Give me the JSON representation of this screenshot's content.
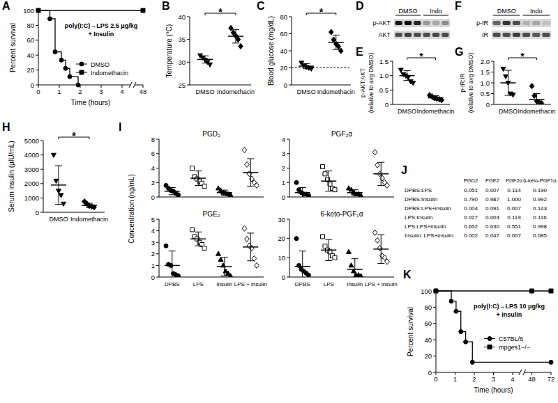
{
  "chart_data": [
    {
      "type": "survival",
      "panel": "A",
      "ylabel": "Percent survival",
      "xlabel": "Time (hours)",
      "xlim": [
        0,
        48
      ],
      "xticks": [
        0,
        1,
        2,
        3,
        4,
        48
      ],
      "ylim": [
        0,
        100
      ],
      "yticks": [
        0,
        20,
        40,
        60,
        80,
        100
      ],
      "annotation": [
        "poly(I:C)→LPS 2.5 μg/kg",
        "+ Insulin"
      ],
      "legend": "lower right",
      "series": [
        {
          "name": "DMSO",
          "color": "#000000",
          "marker": "circle",
          "x": [
            0,
            0.55,
            0.8,
            1.1,
            1.3,
            1.5,
            1.9
          ],
          "values": [
            100,
            88.9,
            44.4,
            33.3,
            22.2,
            11.1,
            0
          ]
        },
        {
          "name": "Indomethacin",
          "color": "#000000",
          "marker": "square",
          "x": [
            0,
            48
          ],
          "values": [
            100,
            100
          ]
        }
      ]
    },
    {
      "type": "dot",
      "panel": "B",
      "ylabel": "Temperature (°C)",
      "ylim": [
        25,
        40
      ],
      "yticks": [
        25,
        30,
        35,
        40
      ],
      "categories": [
        "DMSO",
        "Indomethacin"
      ],
      "significance": "*",
      "groups": [
        {
          "marker": "triangle-down",
          "color": "#000000",
          "values": [
            31.5,
            31,
            30.5,
            30,
            29.5
          ],
          "mean": 30.6,
          "sd": 0.8
        },
        {
          "marker": "diamond",
          "color": "#000000",
          "values": [
            37.5,
            36.5,
            35.8,
            35,
            33.5
          ],
          "mean": 35.7,
          "sd": 1.5
        }
      ]
    },
    {
      "type": "dot",
      "panel": "C",
      "ylabel": "Blood glucose (mg/dL)",
      "ylim": [
        0,
        80
      ],
      "yticks": [
        0,
        20,
        40,
        60,
        80
      ],
      "categories": [
        "DMSO",
        "Indomethacin"
      ],
      "significance": "*",
      "threshold": 20,
      "groups": [
        {
          "marker": "triangle-down",
          "color": "#000000",
          "values": [
            26,
            23,
            21,
            20,
            19
          ],
          "mean": 22,
          "sd": 3
        },
        {
          "marker": "diamond",
          "color": "#000000",
          "values": [
            62,
            53,
            48,
            45,
            40
          ],
          "mean": 50,
          "sd": 8.5
        }
      ]
    },
    {
      "type": "blot",
      "panel": "D",
      "lanes": [
        "DMSO",
        "Indo"
      ],
      "rows": [
        {
          "label": "p-AKT",
          "intensity": [
            0.9,
            0.95,
            0.85,
            0.4,
            0.35,
            0.45
          ]
        },
        {
          "label": "AKT",
          "intensity": [
            0.7,
            0.75,
            0.7,
            0.7,
            0.72,
            0.7
          ]
        }
      ]
    },
    {
      "type": "dot",
      "panel": "E",
      "ylabel": [
        "p-AKT:AKT",
        "(relative to avg DMSO)"
      ],
      "ylim": [
        0,
        1.5
      ],
      "yticks": [
        0,
        0.5,
        {
          "value": 1,
          "label": "1.0"
        },
        1.5
      ],
      "categories": [
        "DMSO",
        "Indomethacin"
      ],
      "significance": "*",
      "groups": [
        {
          "marker": "triangle-down",
          "color": "#000000",
          "values": [
            1.2,
            1.05,
            1.0,
            0.95,
            0.8,
            0.75
          ],
          "mean": 1.0,
          "sd": 0.17
        },
        {
          "marker": "diamond",
          "color": "#000000",
          "values": [
            0.32,
            0.28,
            0.22,
            0.2,
            0.18,
            0.15
          ],
          "mean": 0.23,
          "sd": 0.07
        }
      ]
    },
    {
      "type": "blot",
      "panel": "F",
      "lanes": [
        "DMSO",
        "Indo"
      ],
      "rows": [
        {
          "label": "p-IR",
          "intensity": [
            0.6,
            0.8,
            0.7,
            0.3,
            0.35,
            0.25
          ]
        },
        {
          "label": "IR",
          "intensity": [
            0.7,
            0.7,
            0.75,
            0.7,
            0.65,
            0.7
          ]
        }
      ]
    },
    {
      "type": "dot",
      "panel": "G",
      "ylabel": [
        "p-IR:IR",
        "(relative to avg DMSO)"
      ],
      "ylim": [
        0,
        2
      ],
      "yticks": [
        0,
        0.5,
        {
          "value": 1,
          "label": "1.0"
        },
        1.5,
        {
          "value": 2,
          "label": "2.0"
        }
      ],
      "categories": [
        "DMSO",
        "Indomethacin"
      ],
      "significance": "*",
      "groups": [
        {
          "marker": "triangle-down",
          "color": "#000000",
          "values": [
            1.65,
            1.3,
            1.0,
            0.5,
            0.45
          ],
          "mean": 1.0,
          "sd": 0.58
        },
        {
          "marker": "diamond",
          "color": "#000000",
          "values": [
            0.85,
            0.4,
            0.15,
            0.1,
            0.05
          ],
          "mean": 0.22,
          "sd": 0.28
        }
      ]
    },
    {
      "type": "dot",
      "panel": "H",
      "ylabel": "Serum insulin (μIU/mL)",
      "ylim": [
        0,
        5000
      ],
      "yticks": [
        0,
        1000,
        2000,
        3000,
        4000,
        5000
      ],
      "categories": [
        "DMSO",
        "Indomethacin"
      ],
      "significance": "*",
      "groups": [
        {
          "marker": "triangle-down",
          "color": "#000000",
          "values": [
            4000,
            2200,
            1500,
            1200,
            600
          ],
          "mean": 1900,
          "sd": 1350
        },
        {
          "marker": "diamond",
          "color": "#000000",
          "values": [
            750,
            600,
            450,
            400,
            350
          ],
          "mean": 480,
          "sd": 150
        }
      ]
    },
    {
      "type": "dot",
      "panel": "I",
      "title": "PGD₂",
      "ylabel": "Concentration (ng/mL)",
      "ylim": [
        0,
        8
      ],
      "yticks": [
        0,
        2,
        4,
        6,
        8
      ],
      "groups": [
        {
          "marker": "circle",
          "color": "#000000",
          "values": [
            1.6,
            1.2,
            0.9,
            0.8,
            0.5,
            0.3
          ],
          "mean": 0.8,
          "sd": 0.5
        },
        {
          "marker": "open-square",
          "color": "#000000",
          "values": [
            4.0,
            2.8,
            2.5,
            2.2,
            1.9,
            1.5
          ],
          "mean": 2.6,
          "sd": 1.0
        },
        {
          "marker": "triangle-up",
          "color": "#000000",
          "values": [
            1.2,
            0.9,
            0.6,
            0.5,
            0.4,
            0.3
          ],
          "mean": 0.6,
          "sd": 0.35
        },
        {
          "marker": "open-diamond",
          "color": "#000000",
          "values": [
            6.5,
            4.5,
            3.2,
            2.5,
            2.0,
            1.6
          ],
          "mean": 3.4,
          "sd": 1.9
        }
      ]
    },
    {
      "type": "dot",
      "title": "PGF₂α",
      "ylim": [
        0,
        4
      ],
      "yticks": [
        0,
        1,
        2,
        3,
        4
      ],
      "groups": [
        {
          "marker": "circle",
          "color": "#000000",
          "values": [
            1.0,
            0.5,
            0.3,
            0.2,
            0.2,
            0.1
          ],
          "mean": 0.3,
          "sd": 0.35
        },
        {
          "marker": "open-square",
          "color": "#000000",
          "values": [
            2.1,
            1.6,
            1.2,
            0.9,
            0.6,
            0.5
          ],
          "mean": 1.1,
          "sd": 0.7
        },
        {
          "marker": "triangle-up",
          "color": "#000000",
          "values": [
            0.6,
            0.5,
            0.3,
            0.2,
            0.2,
            0.1
          ],
          "mean": 0.3,
          "sd": 0.2
        },
        {
          "marker": "open-diamond",
          "color": "#000000",
          "values": [
            3.1,
            2.2,
            1.6,
            1.3,
            1.0,
            0.8
          ],
          "mean": 1.6,
          "sd": 0.8
        }
      ]
    },
    {
      "type": "dot",
      "title": "PGE₂",
      "ylim": [
        0,
        5
      ],
      "yticks": [
        0,
        1,
        2,
        3,
        4,
        5
      ],
      "categories": [
        "DPBS",
        "LPS",
        "Insulin",
        "LPS + insulin"
      ],
      "groups": [
        {
          "marker": "circle",
          "color": "#000000",
          "values": [
            2.7,
            1.1,
            1.0,
            0.3,
            0.2,
            0.1
          ],
          "mean": 1.0,
          "sd": 1.25
        },
        {
          "marker": "open-square",
          "color": "#000000",
          "values": [
            4.1,
            3.5,
            3.3,
            3.0,
            2.8,
            2.5
          ],
          "mean": 3.3,
          "sd": 0.6
        },
        {
          "marker": "triangle-up",
          "color": "#000000",
          "values": [
            2.0,
            1.5,
            1.0,
            0.5,
            0.3,
            0.1
          ],
          "mean": 0.9,
          "sd": 0.8
        },
        {
          "marker": "open-diamond",
          "color": "#000000",
          "values": [
            4.2,
            3.3,
            2.7,
            2.5,
            1.6,
            1.0
          ],
          "mean": 2.6,
          "sd": 1.2
        }
      ]
    },
    {
      "type": "dot",
      "title": "6-keto-PGF₁α",
      "ylim": [
        0,
        30
      ],
      "yticks": [
        0,
        10,
        20,
        30
      ],
      "categories": [
        "DPBS",
        "LPS",
        "Insulin",
        "LPS + insulin"
      ],
      "groups": [
        {
          "marker": "circle",
          "color": "#000000",
          "values": [
            20,
            6,
            4,
            3,
            2,
            1
          ],
          "mean": 5.5,
          "sd": 8
        },
        {
          "marker": "open-square",
          "color": "#000000",
          "values": [
            21,
            16,
            14,
            13,
            11,
            10
          ],
          "mean": 14,
          "sd": 5.5
        },
        {
          "marker": "triangle-up",
          "color": "#000000",
          "values": [
            13,
            6,
            3,
            1,
            1,
            0.5
          ],
          "mean": 4,
          "sd": 5.5
        },
        {
          "marker": "open-diamond",
          "color": "#000000",
          "values": [
            23,
            19,
            15,
            11,
            10,
            8
          ],
          "mean": 14.5,
          "sd": 7.5
        }
      ]
    },
    {
      "type": "table",
      "panel": "J",
      "columns": [
        "PGD2",
        "PGE2",
        "PGF2α",
        "6-keto-PGF1α"
      ],
      "rows": [
        {
          "label": "DPBS:LPS",
          "values": [
            "0.051",
            "0.007",
            "0.114",
            "0.190"
          ]
        },
        {
          "label": "DPBS:Insulin",
          "values": [
            "0.790",
            "0.987",
            "1.000",
            "0.992"
          ]
        },
        {
          "label": "DPBS:LPS+insulin",
          "values": [
            "0.004",
            "0.091",
            "0.007",
            "0.143"
          ]
        },
        {
          "label": "LPS:Insulin",
          "values": [
            "0.027",
            "0.003",
            "0.119",
            "0.116"
          ]
        },
        {
          "label": "LPS:LPS+insulin",
          "values": [
            "0.652",
            "0.630",
            "0.551",
            "0.998"
          ]
        },
        {
          "label": "Insulin: LPS+insulin",
          "values": [
            "0.002",
            "0.047",
            "0.007",
            "0.085"
          ]
        }
      ]
    },
    {
      "type": "survival",
      "panel": "K",
      "ylabel": "Percent survival",
      "xlabel": "Time (hours)",
      "xlim": [
        0,
        72
      ],
      "xticks": [
        0,
        1,
        2,
        3,
        4,
        48,
        72
      ],
      "ylim": [
        0,
        100
      ],
      "yticks": [
        0,
        20,
        40,
        60,
        80,
        100
      ],
      "annotation": [
        "poly(I:C)→LPS 10 μg/kg",
        "+ Insulin"
      ],
      "legend": "right",
      "series": [
        {
          "name": "C57BL/6",
          "color": "#000000",
          "marker": "circle",
          "x": [
            0,
            0.8,
            1.05,
            1.3,
            1.55,
            1.9,
            72
          ],
          "values": [
            100,
            87.5,
            75,
            50,
            37.5,
            12.5,
            12.5
          ]
        },
        {
          "name": "mpges1−/−",
          "color": "#000000",
          "marker": "square",
          "x": [
            0,
            48,
            72
          ],
          "values": [
            100,
            100,
            100
          ]
        }
      ]
    }
  ]
}
